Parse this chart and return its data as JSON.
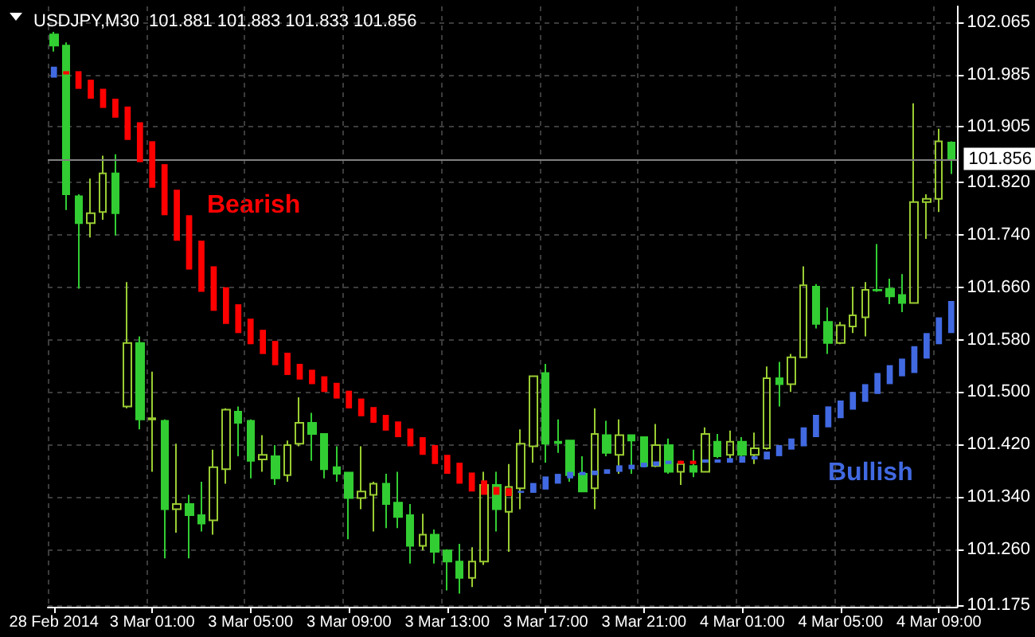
{
  "chart_data": {
    "type": "candlestick",
    "title": "USDJPY,M30  101.881 101.883 101.833 101.856",
    "categories": [
      "28 Feb 2014",
      null,
      null,
      null,
      null,
      null,
      null,
      null,
      "3 Mar 01:00",
      null,
      null,
      null,
      null,
      null,
      null,
      null,
      "3 Mar 05:00",
      null,
      null,
      null,
      null,
      null,
      null,
      null,
      "3 Mar 09:00",
      null,
      null,
      null,
      null,
      null,
      null,
      null,
      "3 Mar 13:00",
      null,
      null,
      null,
      null,
      null,
      null,
      null,
      "3 Mar 17:00",
      null,
      null,
      null,
      null,
      null,
      null,
      null,
      "3 Mar 21:00",
      null,
      null,
      null,
      null,
      null,
      null,
      null,
      "4 Mar 01:00",
      null,
      null,
      null,
      null,
      null,
      null,
      null,
      "4 Mar 05:00",
      null,
      null,
      null,
      null,
      null,
      null,
      null,
      "4 Mar 09:00",
      null
    ],
    "ylim": [
      101.172,
      102.089
    ],
    "yticks": [
      101.175,
      {
        "value": 101.26,
        "label": "101.260"
      },
      {
        "value": 101.34,
        "label": "101.340"
      },
      {
        "value": 101.42,
        "label": "101.420"
      },
      {
        "value": 101.5,
        "label": "101.500"
      },
      {
        "value": 101.58,
        "label": "101.580"
      },
      {
        "value": 101.66,
        "label": "101.660"
      },
      {
        "value": 101.74,
        "label": "101.740"
      },
      {
        "value": 101.82,
        "label": "101.820"
      },
      101.905,
      101.985,
      102.065
    ],
    "grid": true,
    "ref_lines": [
      {
        "axis": "y",
        "value": 101.856,
        "label": "101.856",
        "color": "#808080"
      }
    ],
    "series": [
      {
        "ohlc": [
          [
            102.046,
            102.05,
            102.02,
            102.029
          ],
          [
            102.029,
            102.034,
            101.778,
            101.802
          ],
          [
            101.799,
            101.802,
            101.658,
            101.758
          ],
          [
            101.758,
            101.826,
            101.736,
            101.773
          ],
          [
            101.775,
            101.861,
            101.763,
            101.834
          ],
          [
            101.834,
            101.863,
            101.739,
            101.773
          ],
          [
            101.478,
            101.668,
            101.475,
            101.575
          ],
          [
            101.575,
            101.585,
            101.443,
            101.458
          ],
          [
            101.458,
            101.531,
            101.378,
            101.46
          ],
          [
            101.456,
            101.458,
            101.246,
            101.321
          ],
          [
            101.321,
            101.421,
            101.285,
            101.329
          ],
          [
            101.329,
            101.343,
            101.246,
            101.312
          ],
          [
            101.312,
            101.363,
            101.287,
            101.299
          ],
          [
            101.304,
            101.412,
            101.282,
            101.385
          ],
          [
            101.382,
            101.475,
            101.36,
            101.473
          ],
          [
            101.47,
            101.478,
            101.402,
            101.453
          ],
          [
            101.456,
            101.458,
            101.368,
            101.395
          ],
          [
            101.397,
            101.434,
            101.378,
            101.404
          ],
          [
            101.402,
            101.419,
            101.358,
            101.368
          ],
          [
            101.373,
            101.426,
            101.363,
            101.419
          ],
          [
            101.421,
            101.492,
            101.417,
            101.453
          ],
          [
            101.453,
            101.468,
            101.395,
            101.436
          ],
          [
            101.436,
            101.436,
            101.368,
            101.382
          ],
          [
            101.385,
            101.417,
            101.363,
            101.375
          ],
          [
            101.377,
            101.377,
            101.275,
            101.338
          ],
          [
            101.338,
            101.417,
            101.321,
            101.348
          ],
          [
            101.343,
            101.363,
            101.287,
            101.36
          ],
          [
            101.36,
            101.375,
            101.292,
            101.329
          ],
          [
            101.331,
            101.378,
            101.292,
            101.309
          ],
          [
            101.312,
            101.329,
            101.238,
            101.265
          ],
          [
            101.265,
            101.314,
            101.258,
            101.282
          ],
          [
            101.282,
            101.29,
            101.238,
            101.256
          ],
          [
            101.258,
            101.26,
            101.197,
            101.241
          ],
          [
            101.241,
            101.268,
            101.192,
            101.216
          ],
          [
            101.216,
            101.263,
            101.202,
            101.241
          ],
          [
            101.241,
            101.378,
            101.236,
            101.358
          ],
          [
            101.358,
            101.378,
            101.287,
            101.321
          ],
          [
            101.317,
            101.39,
            101.256,
            101.355
          ],
          [
            101.353,
            101.443,
            101.321,
            101.421
          ],
          [
            101.417,
            101.524,
            101.392,
            101.524
          ],
          [
            101.529,
            101.543,
            101.392,
            101.421
          ],
          [
            101.424,
            101.458,
            101.407,
            101.422
          ],
          [
            101.426,
            101.426,
            101.363,
            101.373
          ],
          [
            101.375,
            101.402,
            101.348,
            101.348
          ],
          [
            101.353,
            101.475,
            101.321,
            101.436
          ],
          [
            101.434,
            101.456,
            101.402,
            101.407
          ],
          [
            101.404,
            101.458,
            101.375,
            101.434
          ],
          [
            101.434,
            101.434,
            101.375,
            101.426
          ],
          [
            101.431,
            101.431,
            101.385,
            101.387
          ],
          [
            101.387,
            101.451,
            101.385,
            101.419
          ],
          [
            101.419,
            101.429,
            101.375,
            101.378
          ],
          [
            101.378,
            101.395,
            101.358,
            101.39
          ],
          [
            101.387,
            101.412,
            101.37,
            101.378
          ],
          [
            101.378,
            101.446,
            101.378,
            101.436
          ],
          [
            101.424,
            101.436,
            101.399,
            101.402
          ],
          [
            101.404,
            101.441,
            101.397,
            101.424
          ],
          [
            101.424,
            101.431,
            101.397,
            101.404
          ],
          [
            101.404,
            101.438,
            101.39,
            101.414
          ],
          [
            101.414,
            101.539,
            101.412,
            101.521
          ],
          [
            101.521,
            101.546,
            101.478,
            101.512
          ],
          [
            101.512,
            101.558,
            101.5,
            101.553
          ],
          [
            101.553,
            101.692,
            101.553,
            101.663
          ],
          [
            101.661,
            101.665,
            101.597,
            101.604
          ],
          [
            101.607,
            101.629,
            101.558,
            101.575
          ],
          [
            101.575,
            101.607,
            101.573,
            101.602
          ],
          [
            101.6,
            101.661,
            101.59,
            101.617
          ],
          [
            101.614,
            101.668,
            101.585,
            101.656
          ],
          [
            101.656,
            101.726,
            101.653,
            101.655
          ],
          [
            101.658,
            101.673,
            101.634,
            101.646
          ],
          [
            101.648,
            101.68,
            101.622,
            101.636
          ],
          [
            101.636,
            101.941,
            101.636,
            101.79
          ],
          [
            101.79,
            101.802,
            101.734,
            101.795
          ],
          [
            101.795,
            101.902,
            101.775,
            101.883
          ],
          [
            101.881,
            101.883,
            101.833,
            101.856
          ]
        ],
        "colors": [
          "#32cd32",
          "#32cd32",
          "#32cd32",
          "#9acd32",
          "#9acd32",
          "#32cd32",
          "#9acd32",
          "#32cd32",
          "#9acd32",
          "#32cd32",
          "#9acd32",
          "#32cd32",
          "#32cd32",
          "#9acd32",
          "#9acd32",
          "#32cd32",
          "#32cd32",
          "#9acd32",
          "#32cd32",
          "#9acd32",
          "#9acd32",
          "#32cd32",
          "#32cd32",
          "#32cd32",
          "#32cd32",
          "#9acd32",
          "#9acd32",
          "#32cd32",
          "#32cd32",
          "#32cd32",
          "#9acd32",
          "#32cd32",
          "#32cd32",
          "#32cd32",
          "#9acd32",
          "#9acd32",
          "#32cd32",
          "#9acd32",
          "#9acd32",
          "#9acd32",
          "#32cd32",
          "#32cd32",
          "#32cd32",
          "#32cd32",
          "#9acd32",
          "#32cd32",
          "#9acd32",
          "#32cd32",
          "#32cd32",
          "#9acd32",
          "#32cd32",
          "#9acd32",
          "#32cd32",
          "#9acd32",
          "#32cd32",
          "#9acd32",
          "#32cd32",
          "#9acd32",
          "#9acd32",
          "#32cd32",
          "#9acd32",
          "#9acd32",
          "#32cd32",
          "#32cd32",
          "#9acd32",
          "#9acd32",
          "#9acd32",
          "#32cd32",
          "#32cd32",
          "#32cd32",
          "#9acd32",
          "#9acd32",
          "#9acd32",
          "#32cd32"
        ]
      },
      {
        "type": "bar",
        "name": "Bearish",
        "color": "#ff0000",
        "base": [
          null,
          101.985,
          101.963,
          101.948,
          101.934,
          101.919,
          101.885,
          101.851,
          101.812,
          101.77,
          101.731,
          101.687,
          101.653,
          101.624,
          101.604,
          101.59,
          101.573,
          101.558,
          101.541,
          101.526,
          101.519,
          101.512,
          101.5,
          101.49,
          101.475,
          101.463,
          101.453,
          101.441,
          101.431,
          101.417,
          101.404,
          101.39,
          101.375,
          101.36,
          101.348,
          101.343,
          101.343,
          101.341,
          null,
          null,
          null,
          null,
          null,
          null,
          null,
          null,
          null,
          null,
          null,
          null,
          null,
          101.39,
          101.39,
          null,
          null,
          null,
          null,
          null,
          null,
          null,
          null,
          null,
          null,
          null,
          null,
          null,
          null,
          null,
          null,
          null,
          null,
          null,
          null,
          null
        ],
        "values": [
          null,
          0.005,
          0.027,
          0.029,
          0.029,
          0.029,
          0.051,
          0.061,
          0.071,
          0.078,
          0.078,
          0.083,
          0.078,
          0.068,
          0.056,
          0.044,
          0.039,
          0.037,
          0.037,
          0.034,
          0.024,
          0.022,
          0.024,
          0.024,
          0.027,
          0.027,
          0.024,
          0.024,
          0.024,
          0.027,
          0.027,
          0.029,
          0.029,
          0.032,
          0.029,
          0.022,
          0.012,
          0.012,
          null,
          null,
          null,
          null,
          null,
          null,
          null,
          null,
          null,
          null,
          null,
          null,
          null,
          0.005,
          0.005,
          null,
          null,
          null,
          null,
          null,
          null,
          null,
          null,
          null,
          null,
          null,
          null,
          null,
          null,
          null,
          null,
          null,
          null,
          null,
          null,
          null
        ]
      },
      {
        "type": "bar",
        "name": "Bullish",
        "color": "#4169e1",
        "base": [
          101.98,
          null,
          null,
          null,
          null,
          null,
          null,
          null,
          null,
          null,
          null,
          null,
          null,
          null,
          null,
          null,
          null,
          null,
          null,
          null,
          null,
          null,
          null,
          null,
          null,
          null,
          null,
          null,
          null,
          null,
          null,
          null,
          null,
          null,
          null,
          null,
          null,
          null,
          101.346,
          101.346,
          101.351,
          101.36,
          101.368,
          101.373,
          101.373,
          101.375,
          101.378,
          101.382,
          101.385,
          101.387,
          101.39,
          null,
          null,
          101.392,
          101.392,
          101.392,
          101.392,
          101.397,
          101.397,
          101.402,
          101.412,
          101.417,
          101.431,
          101.446,
          101.46,
          101.473,
          101.485,
          101.497,
          101.512,
          101.524,
          101.529,
          101.551,
          101.573,
          101.59
        ],
        "values": [
          0.017,
          null,
          null,
          null,
          null,
          null,
          null,
          null,
          null,
          null,
          null,
          null,
          null,
          null,
          null,
          null,
          null,
          null,
          null,
          null,
          null,
          null,
          null,
          null,
          null,
          null,
          null,
          null,
          null,
          null,
          null,
          null,
          null,
          null,
          null,
          null,
          null,
          null,
          0.003,
          0.015,
          0.02,
          0.015,
          0.01,
          0.005,
          0.007,
          0.007,
          0.01,
          0.007,
          0.007,
          0.007,
          0.005,
          null,
          null,
          0.005,
          0.005,
          0.007,
          0.01,
          0.005,
          0.012,
          0.017,
          0.017,
          0.029,
          0.034,
          0.032,
          0.027,
          0.027,
          0.027,
          0.032,
          0.029,
          0.027,
          0.041,
          0.039,
          0.041,
          0.049
        ]
      }
    ]
  }
}
